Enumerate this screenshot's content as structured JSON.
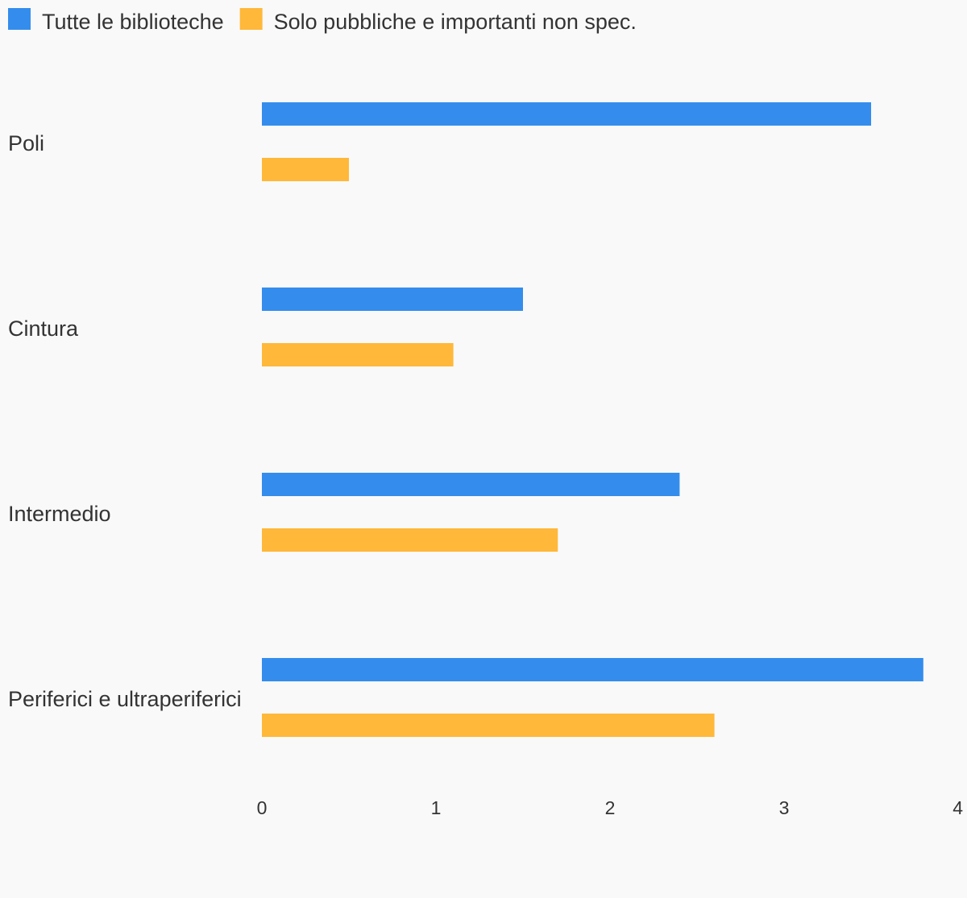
{
  "chart_data": {
    "type": "bar",
    "orientation": "horizontal",
    "categories": [
      "Poli",
      "Cintura",
      "Intermedio",
      "Periferici e ultraperiferici"
    ],
    "series": [
      {
        "name": "Tutte le biblioteche",
        "color": "#348ded",
        "values": [
          3.5,
          1.5,
          2.4,
          3.8
        ]
      },
      {
        "name": "Solo pubbliche e importanti non spec.",
        "color": "#ffb83a",
        "values": [
          0.5,
          1.1,
          1.7,
          2.6
        ]
      }
    ],
    "x_ticks": [
      "0",
      "1",
      "2",
      "3",
      "4"
    ],
    "xlim": [
      0,
      4
    ],
    "grid": false,
    "legend_position": "top-left",
    "title": "",
    "xlabel": "",
    "ylabel": ""
  }
}
